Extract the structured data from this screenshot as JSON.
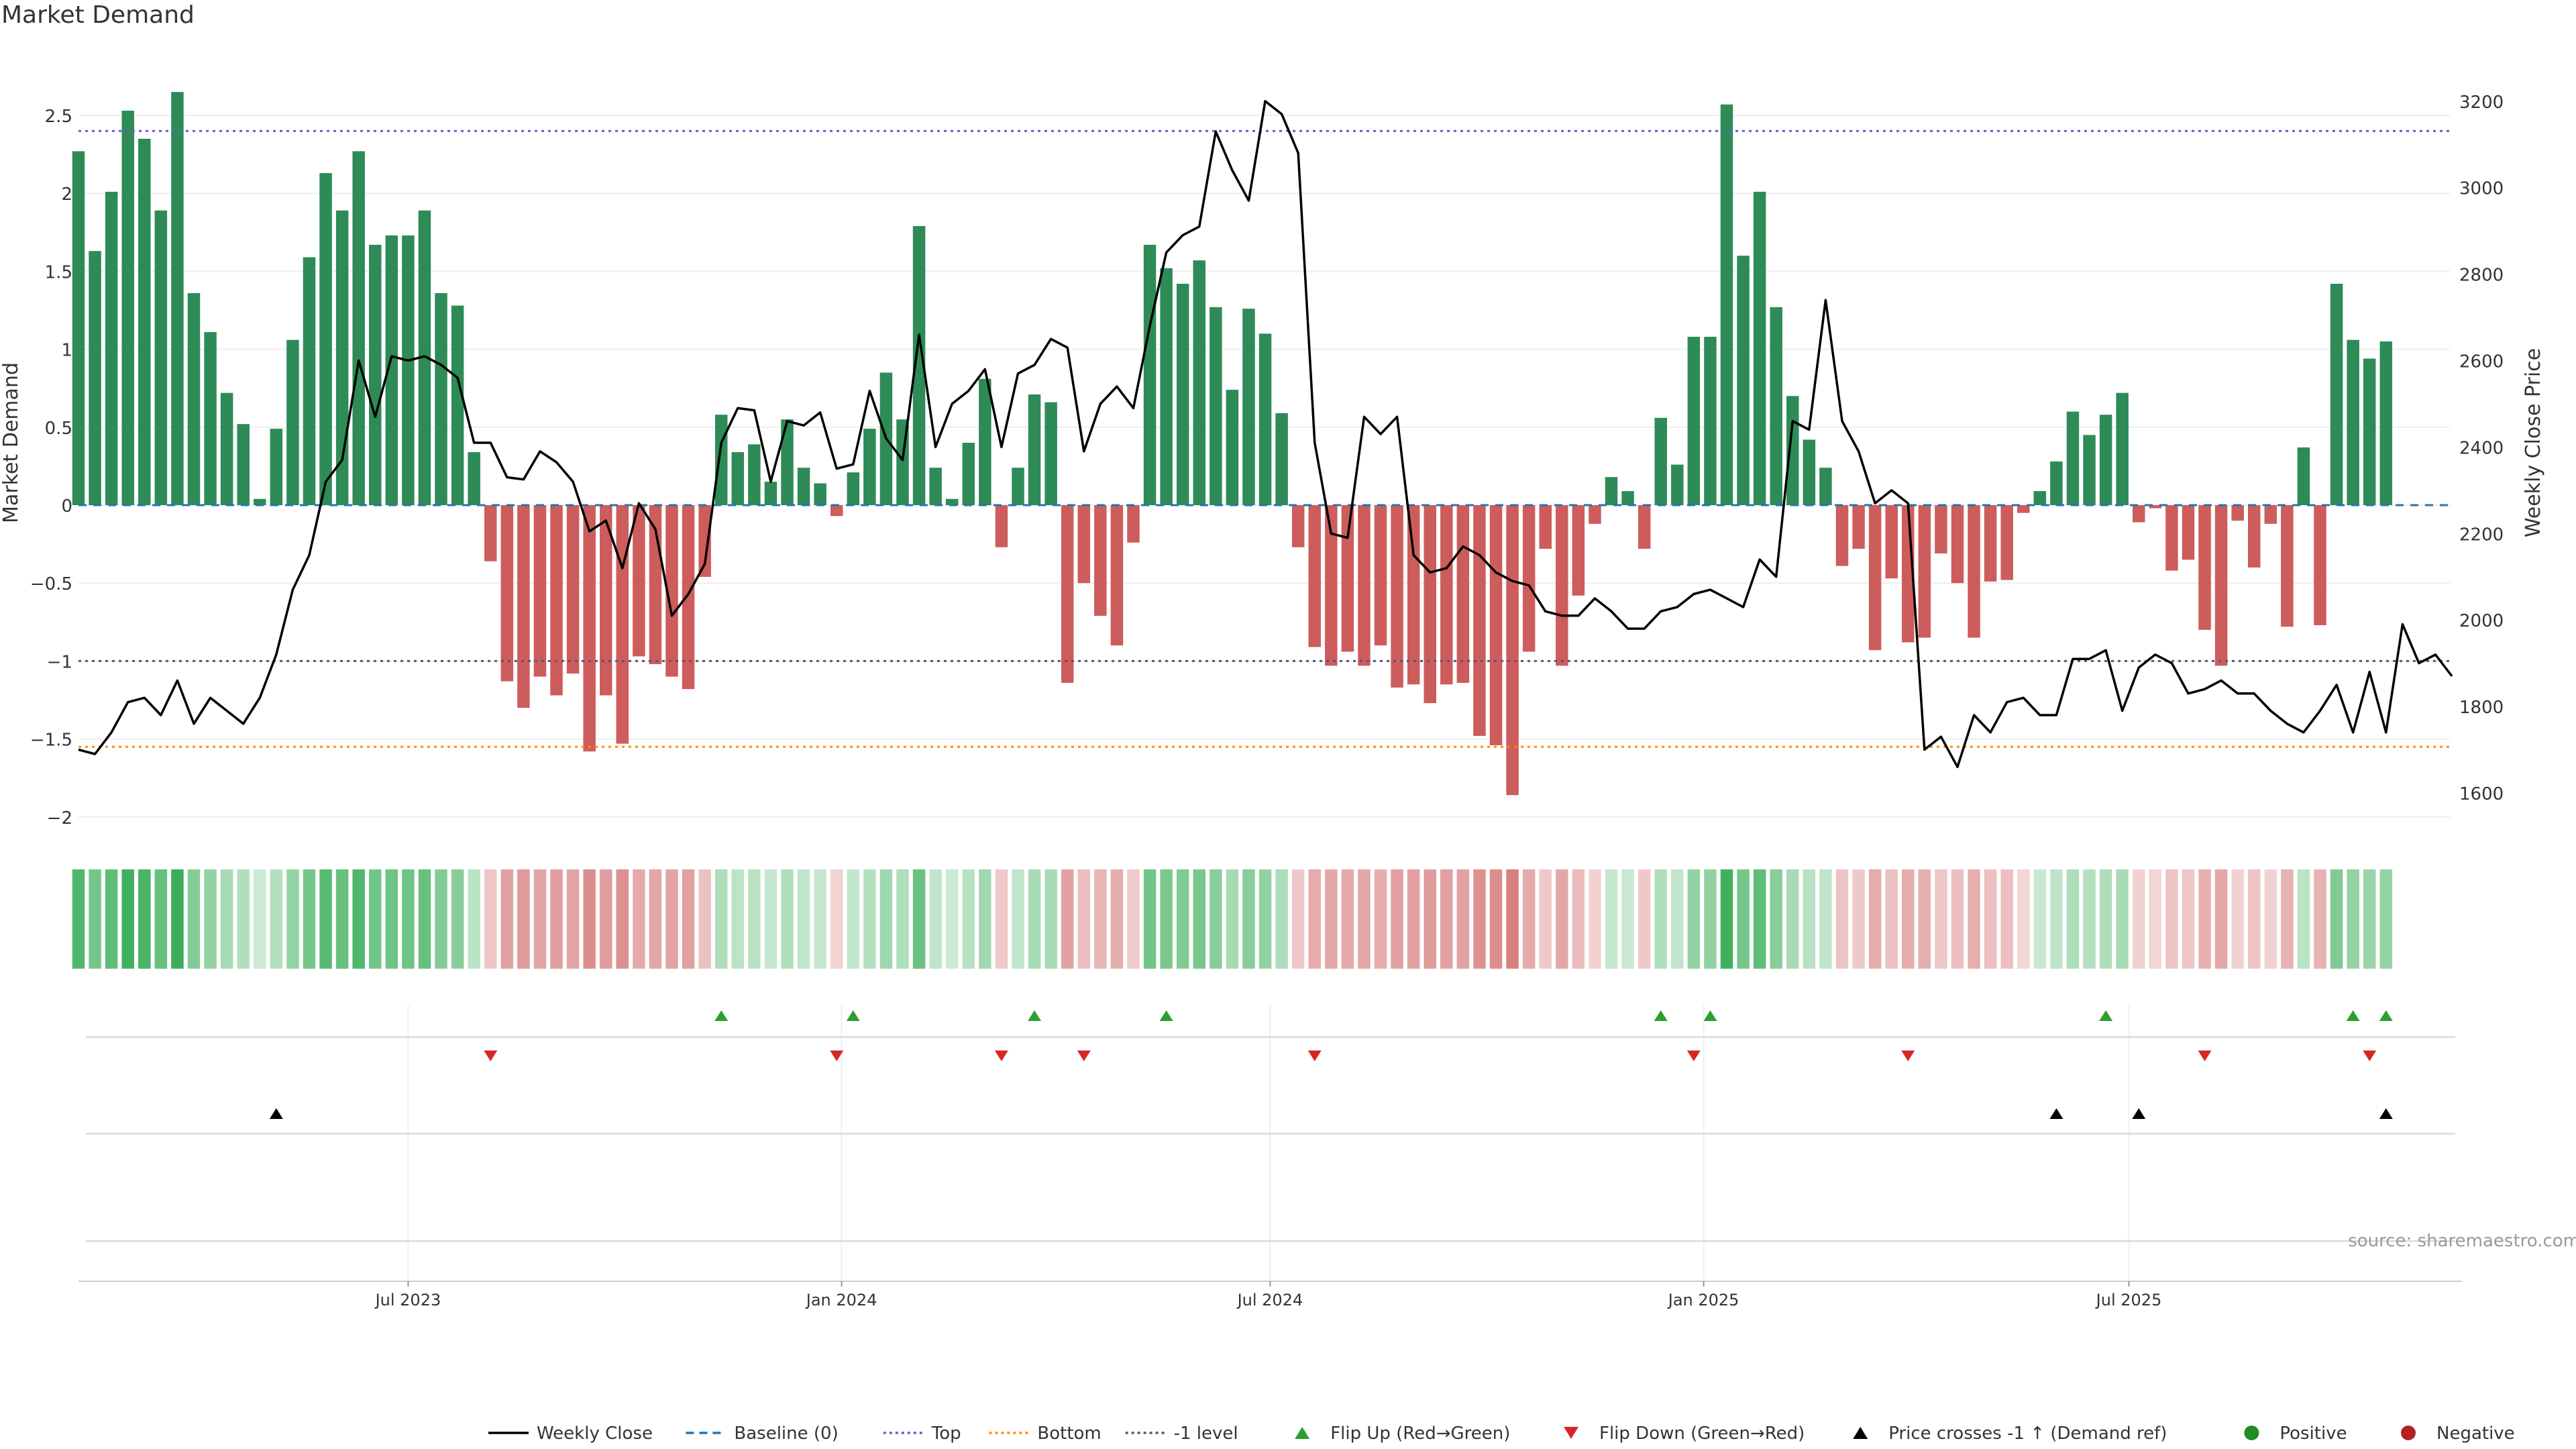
{
  "chart_data": {
    "type": "bar",
    "title": "Market Demand",
    "ylabel_left": "Market Demand",
    "ylabel_right": "Weekly Close Price",
    "ylim_left": [
      -2.2,
      2.8
    ],
    "ylim_right": [
      1550,
      3300
    ],
    "left_ticks": [
      2.5,
      2,
      1.5,
      1,
      0.5,
      0,
      -0.5,
      -1,
      -1.5,
      -2
    ],
    "left_tick_labels": [
      "2.5",
      "2",
      "1.5",
      "1",
      "0.5",
      "0",
      "−0.5",
      "−1",
      "−1.5",
      "−2"
    ],
    "right_ticks": [
      3200,
      3000,
      2800,
      2600,
      2400,
      2200,
      2000,
      1800,
      1600
    ],
    "right_tick_labels": [
      "3200",
      "3000",
      "2800",
      "2600",
      "2400",
      "2200",
      "2000",
      "1800",
      "1600"
    ],
    "x_ticks": [
      {
        "label": "Jul 2023",
        "week": 20
      },
      {
        "label": "Jan 2024",
        "week": 46.3
      },
      {
        "label": "Jul 2024",
        "week": 72.3
      },
      {
        "label": "Jan 2025",
        "week": 98.6
      },
      {
        "label": "Jul 2025",
        "week": 124.4
      }
    ],
    "reference_lines": {
      "top": 2.4,
      "bottom": -1.55,
      "minus_one": -1.0,
      "baseline": 0
    },
    "demand": [
      2.27,
      1.63,
      2.01,
      2.53,
      2.35,
      1.89,
      2.65,
      1.36,
      1.11,
      0.72,
      0.52,
      0.04,
      0.49,
      1.06,
      1.59,
      2.13,
      1.89,
      2.27,
      1.67,
      1.73,
      1.73,
      1.89,
      1.36,
      1.28,
      0.34,
      -0.36,
      -1.13,
      -1.3,
      -1.1,
      -1.22,
      -1.08,
      -1.58,
      -1.22,
      -1.53,
      -0.97,
      -1.02,
      -1.1,
      -1.18,
      -0.46,
      0.58,
      0.34,
      0.39,
      0.15,
      0.55,
      0.24,
      0.14,
      -0.07,
      0.21,
      0.49,
      0.85,
      0.55,
      1.79,
      0.24,
      0.04,
      0.4,
      0.81,
      -0.27,
      0.24,
      0.71,
      0.66,
      -1.14,
      -0.5,
      -0.71,
      -0.9,
      -0.24,
      1.67,
      1.52,
      1.42,
      1.57,
      1.27,
      0.74,
      1.26,
      1.1,
      0.59,
      -0.27,
      -0.91,
      -1.03,
      -0.94,
      -1.03,
      -0.9,
      -1.17,
      -1.15,
      -1.27,
      -1.15,
      -1.14,
      -1.48,
      -1.54,
      -1.86,
      -0.94,
      -0.28,
      -1.03,
      -0.58,
      -0.12,
      0.18,
      0.09,
      -0.28,
      0.56,
      0.26,
      1.08,
      1.08,
      2.57,
      1.6,
      2.01,
      1.27,
      0.7,
      0.42,
      0.24,
      -0.39,
      -0.28,
      -0.93,
      -0.47,
      -0.88,
      -0.85,
      -0.31,
      -0.5,
      -0.85,
      -0.49,
      -0.48,
      -0.05,
      0.09,
      0.28,
      0.6,
      0.45,
      0.58,
      0.72,
      -0.11,
      -0.02,
      -0.42,
      -0.35,
      -0.8,
      -1.03,
      -0.1,
      -0.4,
      -0.12,
      -0.78,
      0.37,
      -0.77,
      1.42,
      1.06,
      0.94,
      1.05
    ],
    "weekly_close": [
      1700,
      1690,
      1740,
      1810,
      1820,
      1780,
      1860,
      1760,
      1820,
      1790,
      1760,
      1820,
      1920,
      2070,
      2150,
      2320,
      2370,
      2600,
      2470,
      2610,
      2600,
      2610,
      2590,
      2560,
      2410,
      2410,
      2330,
      2325,
      2390,
      2365,
      2320,
      2205,
      2230,
      2120,
      2270,
      2210,
      2010,
      2060,
      2130,
      2410,
      2490,
      2485,
      2320,
      2460,
      2450,
      2480,
      2350,
      2360,
      2530,
      2420,
      2370,
      2660,
      2400,
      2500,
      2530,
      2580,
      2400,
      2570,
      2590,
      2650,
      2630,
      2390,
      2500,
      2540,
      2490,
      2680,
      2850,
      2890,
      2910,
      3130,
      3040,
      2970,
      3200,
      3170,
      3080,
      2410,
      2200,
      2190,
      2470,
      2430,
      2470,
      2150,
      2110,
      2120,
      2170,
      2150,
      2110,
      2090,
      2080,
      2020,
      2010,
      2010,
      2050,
      2020,
      1980,
      1980,
      2020,
      2030,
      2060,
      2070,
      2050,
      2030,
      2140,
      2100,
      2460,
      2440,
      2740,
      2460,
      2390,
      2270,
      2300,
      2270,
      1700,
      1730,
      1660,
      1780,
      1740,
      1810,
      1820,
      1780,
      1780,
      1910,
      1910,
      1930,
      1790,
      1890,
      1920,
      1900,
      1830,
      1840,
      1860,
      1830,
      1830,
      1790,
      1760,
      1740,
      1790,
      1850,
      1740,
      1880,
      1740,
      1990,
      1900,
      1920,
      1870
    ],
    "flip_up_weeks": [
      39,
      47,
      58,
      66,
      96,
      99,
      123,
      138,
      140
    ],
    "flip_down_weeks": [
      25,
      46,
      56,
      61,
      75,
      98,
      111,
      129,
      139
    ],
    "price_cross_weeks": [
      12,
      120,
      125,
      140
    ],
    "legend": [
      "Weekly Close",
      "Baseline (0)",
      "Top",
      "Bottom",
      "-1 level",
      "Flip Up (Red→Green)",
      "Flip Down (Green→Red)",
      "Price crosses -1 ↑ (Demand ref)",
      "Positive",
      "Negative"
    ],
    "source": "source: sharemaestro.com"
  },
  "colors": {
    "positive": "#2e8b57",
    "negative": "#cd5c5c",
    "line": "#000000",
    "baseline": "#1f77b4",
    "top": "#6a5acd",
    "bottom": "#ff8c00",
    "minus_one": "#555577",
    "flip_up": "#2ca02c",
    "flip_down": "#d62728",
    "legend_positive": "#228b22",
    "legend_negative": "#b22222"
  }
}
